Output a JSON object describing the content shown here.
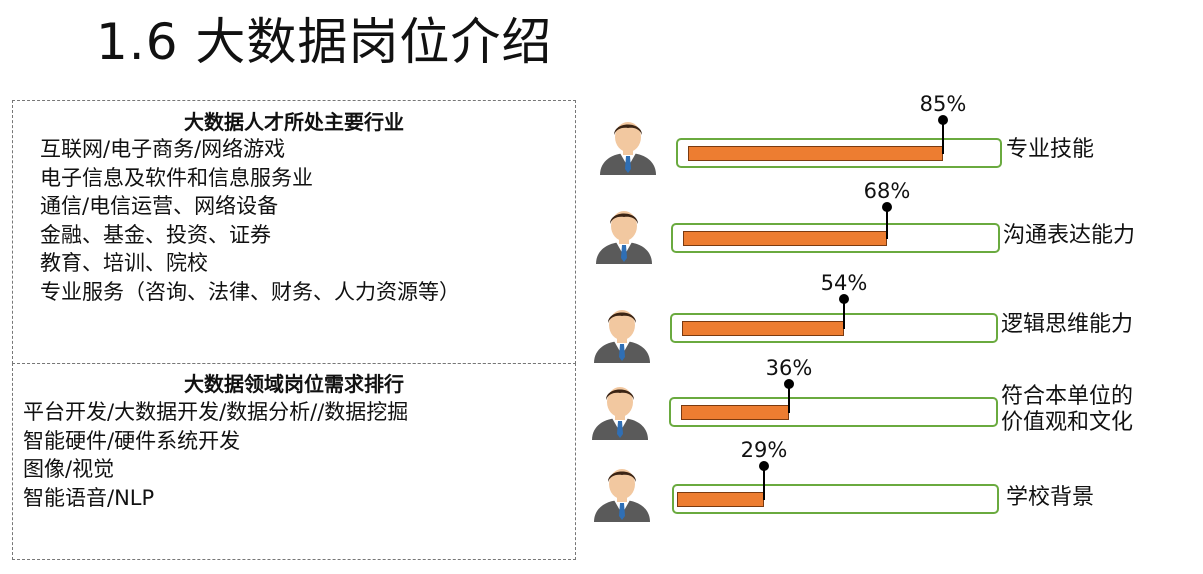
{
  "page": {
    "title": "1.6  大数据岗位介绍"
  },
  "industries": {
    "heading": "大数据人才所处主要行业",
    "items": [
      "互联网/电子商务/网络游戏",
      "电子信息及软件和信息服务业",
      "通信/电信运营、网络设备",
      "金融、基金、投资、证券",
      "教育、培训、院校",
      "专业服务（咨询、法律、财务、人力资源等）"
    ]
  },
  "positions": {
    "heading": "大数据领域岗位需求排行",
    "items": [
      "平台开发/大数据开发/数据分析//数据挖掘",
      "智能硬件/硬件系统开发",
      "图像/视觉",
      "智能语音/NLP"
    ]
  },
  "skills": [
    {
      "label_lines": [
        "专业技能"
      ],
      "percent_label": "85%",
      "value": 85
    },
    {
      "label_lines": [
        "沟通表达能力"
      ],
      "percent_label": "68%",
      "value": 68
    },
    {
      "label_lines": [
        "逻辑思维能力"
      ],
      "percent_label": "54%",
      "value": 54
    },
    {
      "label_lines": [
        "符合本单位的",
        "价值观和文化"
      ],
      "percent_label": "36%",
      "value": 36
    },
    {
      "label_lines": [
        "学校背景"
      ],
      "percent_label": "29%",
      "value": 29
    }
  ],
  "colors": {
    "bar_fill": "#ed7d31",
    "bar_border": "#6aaa3f",
    "suit": "#5a5a5a",
    "tie": "#2f6fb5",
    "skin": "#f2c8a0",
    "hair": "#3b2414"
  }
}
